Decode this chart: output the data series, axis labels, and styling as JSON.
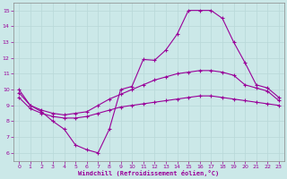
{
  "xlabel": "Windchill (Refroidissement éolien,°C)",
  "xlim": [
    -0.5,
    23.5
  ],
  "ylim": [
    5.5,
    15.5
  ],
  "yticks": [
    6,
    7,
    8,
    9,
    10,
    11,
    12,
    13,
    14,
    15
  ],
  "xticks": [
    0,
    1,
    2,
    3,
    4,
    5,
    6,
    7,
    8,
    9,
    10,
    11,
    12,
    13,
    14,
    15,
    16,
    17,
    18,
    19,
    20,
    21,
    22,
    23
  ],
  "bg_color": "#cbe8e8",
  "line_color": "#990099",
  "grid_color": "#b8d8d8",
  "line1_x": [
    0,
    1,
    2,
    3,
    4,
    5,
    6,
    7,
    8,
    9,
    10,
    11,
    12,
    13,
    14,
    15,
    16,
    17,
    18,
    19,
    20,
    21,
    22,
    23
  ],
  "line1_y": [
    10.0,
    9.0,
    8.6,
    8.0,
    7.5,
    6.5,
    6.2,
    6.0,
    7.5,
    10.0,
    10.2,
    11.9,
    11.85,
    12.5,
    13.5,
    15.0,
    15.0,
    15.0,
    14.5,
    13.0,
    11.7,
    10.3,
    10.1,
    9.5
  ],
  "line2_x": [
    0,
    1,
    2,
    3,
    4,
    5,
    6,
    7,
    8,
    9,
    10,
    11,
    12,
    13,
    14,
    15,
    16,
    17,
    18,
    19,
    20,
    21,
    22,
    23
  ],
  "line2_y": [
    9.8,
    9.0,
    8.7,
    8.5,
    8.4,
    8.5,
    8.6,
    9.0,
    9.4,
    9.7,
    10.0,
    10.3,
    10.6,
    10.8,
    11.0,
    11.1,
    11.2,
    11.2,
    11.1,
    10.9,
    10.3,
    10.1,
    9.9,
    9.3
  ],
  "line3_x": [
    0,
    1,
    2,
    3,
    4,
    5,
    6,
    7,
    8,
    9,
    10,
    11,
    12,
    13,
    14,
    15,
    16,
    17,
    18,
    19,
    20,
    21,
    22,
    23
  ],
  "line3_y": [
    9.5,
    8.8,
    8.5,
    8.3,
    8.2,
    8.2,
    8.3,
    8.5,
    8.7,
    8.9,
    9.0,
    9.1,
    9.2,
    9.3,
    9.4,
    9.5,
    9.6,
    9.6,
    9.5,
    9.4,
    9.3,
    9.2,
    9.1,
    9.0
  ]
}
